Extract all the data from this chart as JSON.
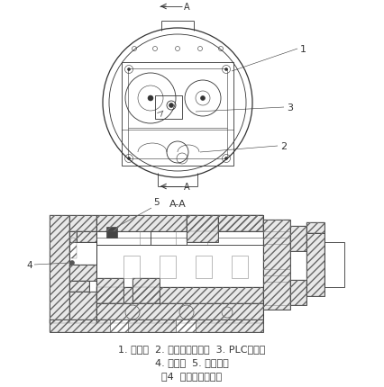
{
  "bg_color": "#ffffff",
  "line_color": "#333333",
  "gray_color": "#888888",
  "hatch_color": "#666666",
  "caption_line1": "1. 齿轮轴  2. 位移检测传感器  3. PLC控制板",
  "caption_line2": "4. 感应点  5. 传动齿轮",
  "caption_line3": "图4  内置式检测装置",
  "label1": "1",
  "label2": "2",
  "label3": "3",
  "label4": "4",
  "label5": "5",
  "fig_width": 4.26,
  "fig_height": 4.31,
  "dpi": 100
}
